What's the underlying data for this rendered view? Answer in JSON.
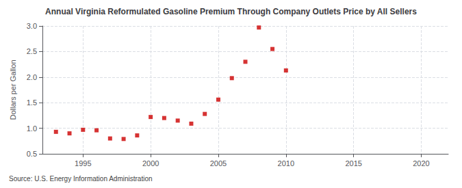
{
  "chart_data": {
    "type": "scatter",
    "title": "Annual Virginia Reformulated Gasoline Premium Through Company Outlets Price by All Sellers",
    "ylabel": "Dollars per Gallon",
    "source": "Source: U.S. Energy Information Administration",
    "x": [
      1993,
      1994,
      1995,
      1996,
      1997,
      1998,
      1999,
      2000,
      2001,
      2002,
      2003,
      2004,
      2005,
      2006,
      2007,
      2008,
      2009,
      2010
    ],
    "values": [
      0.93,
      0.9,
      0.97,
      0.96,
      0.8,
      0.79,
      0.86,
      1.22,
      1.2,
      1.15,
      1.09,
      1.28,
      1.56,
      1.98,
      2.3,
      2.97,
      2.55,
      2.13
    ],
    "color": "#cc0000",
    "marker": "square",
    "xlim": [
      1992,
      2022
    ],
    "ylim": [
      0.5,
      3.0
    ],
    "xticks": [
      1995,
      2000,
      2005,
      2010,
      2015,
      2020
    ],
    "yticks": [
      0.5,
      {
        "value": 1.0,
        "label": "1.0"
      },
      {
        "value": 1.5,
        "label": "1.5"
      },
      {
        "value": 2.0,
        "label": "2.0"
      },
      {
        "value": 2.5,
        "label": "2.5"
      },
      {
        "value": 3.0,
        "label": "3.0"
      }
    ],
    "grid": true
  }
}
